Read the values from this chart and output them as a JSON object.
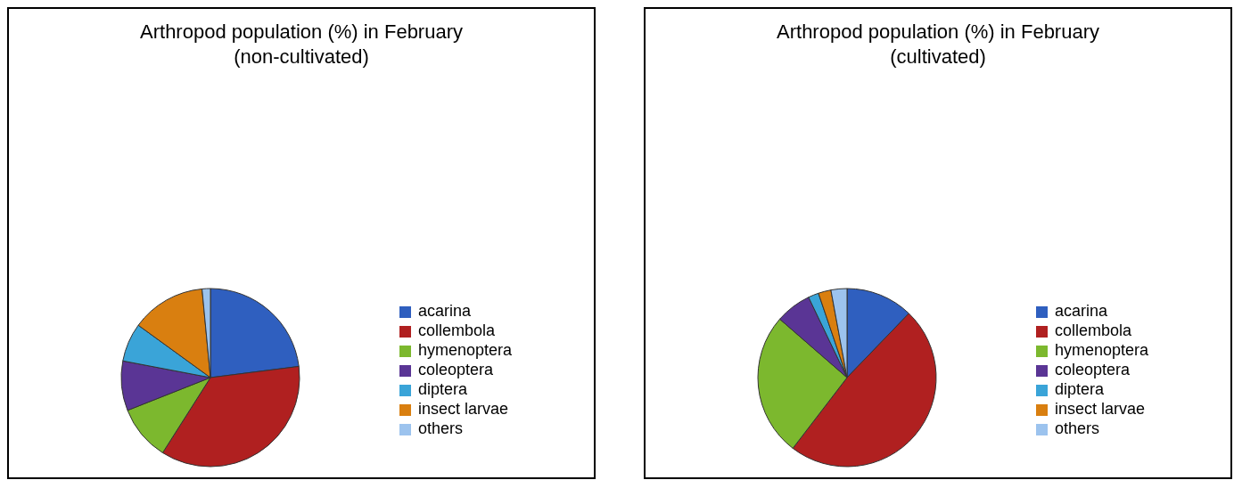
{
  "chart_data": [
    {
      "type": "pie",
      "title": "Arthropod population (%) in February",
      "subtitle": "(non-cultivated)",
      "categories": [
        "acarina",
        "collembola",
        "hymenoptera",
        "coleoptera",
        "diptera",
        "insect larvae",
        "others"
      ],
      "values": [
        23,
        36,
        10,
        9,
        7,
        13.5,
        1.5
      ],
      "colors": [
        "#2f5fbf",
        "#b02020",
        "#7cb82e",
        "#5a3595",
        "#3aa4d8",
        "#d97f10",
        "#9cc3ee"
      ],
      "legend": "right"
    },
    {
      "type": "pie",
      "title": "Arthropod population (%) in February",
      "subtitle": "(cultivated)",
      "categories": [
        "acarina",
        "collembola",
        "hymenoptera",
        "coleoptera",
        "diptera",
        "insect larvae",
        "others"
      ],
      "values": [
        12.2,
        48.2,
        26,
        6.5,
        1.9,
        2.3,
        2.9
      ],
      "colors": [
        "#2f5fbf",
        "#b02020",
        "#7cb82e",
        "#5a3595",
        "#3aa4d8",
        "#d97f10",
        "#9cc3ee"
      ],
      "legend": "right"
    }
  ]
}
